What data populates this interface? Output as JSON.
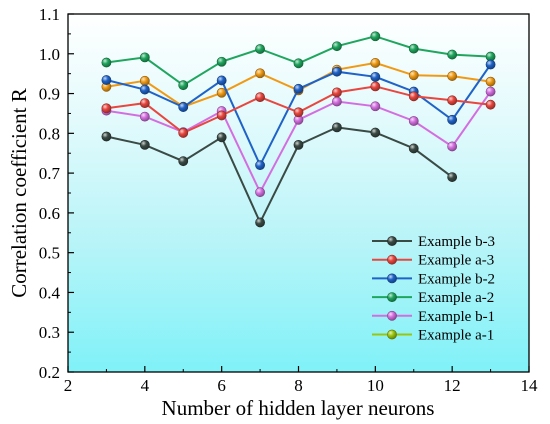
{
  "chart_data": {
    "type": "line",
    "xlabel": "Number of hidden layer neurons",
    "ylabel": "Correlation coefficient R",
    "xlim": [
      2,
      14
    ],
    "ylim": [
      0.2,
      1.1
    ],
    "xticks": [
      2,
      4,
      6,
      8,
      10,
      12,
      14
    ],
    "yticks": [
      0.2,
      0.3,
      0.4,
      0.5,
      0.6,
      0.7,
      0.8,
      0.9,
      1.0,
      1.1
    ],
    "ytick_labels": [
      "0.2",
      "0.3",
      "0.4",
      "0.5",
      "0.6",
      "0.7",
      "0.8",
      "0.9",
      "1.0",
      "1.1"
    ],
    "grid": false,
    "background": "cyan-to-white gradient (bottom to top)",
    "legend_position": "bottom-right",
    "series": [
      {
        "name": "Example b-3",
        "color": "#3a4a45",
        "x": [
          3,
          4,
          5,
          6,
          7,
          8,
          9,
          10,
          11,
          12
        ],
        "values": [
          0.792,
          0.771,
          0.73,
          0.79,
          0.576,
          0.771,
          0.815,
          0.802,
          0.762,
          0.69
        ]
      },
      {
        "name": "Example a-3",
        "color": "#e8463e",
        "x": [
          3,
          4,
          5,
          6,
          7,
          8,
          9,
          10,
          11,
          12,
          13
        ],
        "values": [
          0.863,
          0.876,
          0.801,
          0.845,
          0.891,
          0.853,
          0.903,
          0.918,
          0.893,
          0.883,
          0.872
        ]
      },
      {
        "name": "Example b-2",
        "color": "#1f63c8",
        "x": [
          3,
          4,
          5,
          6,
          7,
          8,
          9,
          10,
          11,
          12,
          13
        ],
        "values": [
          0.934,
          0.91,
          0.866,
          0.933,
          0.72,
          0.912,
          0.955,
          0.942,
          0.905,
          0.834,
          0.973
        ]
      },
      {
        "name": "Example a-2",
        "color": "#1fa65e",
        "x": [
          3,
          4,
          5,
          6,
          7,
          8,
          9,
          10,
          11,
          12,
          13
        ],
        "values": [
          0.978,
          0.991,
          0.921,
          0.98,
          1.012,
          0.976,
          1.019,
          1.044,
          1.013,
          0.998,
          0.993
        ]
      },
      {
        "name": "Example b-1",
        "color": "#d46ee0",
        "x": [
          3,
          4,
          5,
          6,
          7,
          8,
          9,
          10,
          11,
          12,
          13
        ],
        "values": [
          0.857,
          0.842,
          0.803,
          0.856,
          0.652,
          0.834,
          0.88,
          0.868,
          0.831,
          0.767,
          0.905
        ]
      },
      {
        "name": "Example a-1",
        "color": "#f09a14",
        "legend_color": "#9bc60e",
        "x": [
          3,
          4,
          5,
          6,
          7,
          8,
          9,
          10,
          11,
          12,
          13
        ],
        "values": [
          0.917,
          0.932,
          0.867,
          0.902,
          0.951,
          0.908,
          0.96,
          0.977,
          0.946,
          0.944,
          0.93
        ]
      }
    ]
  }
}
